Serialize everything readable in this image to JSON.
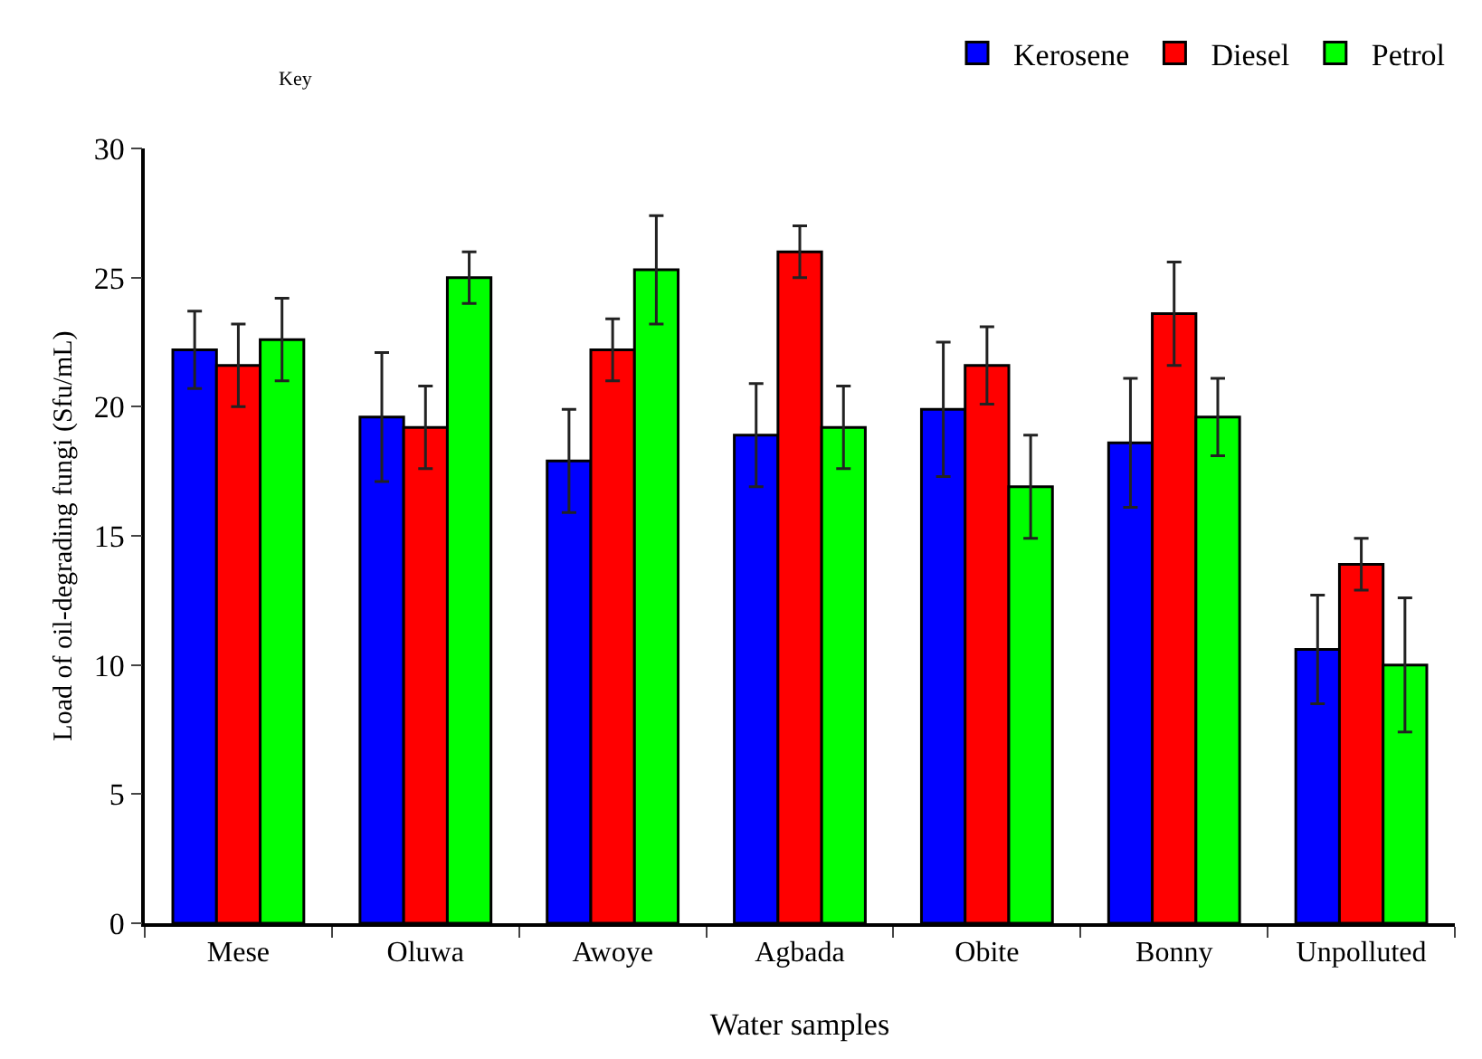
{
  "chart_data": {
    "type": "bar",
    "xlabel": "Water samples",
    "ylabel": "Load of oil-degrading fungi (Sfu/mL)",
    "annotations": [
      "Key"
    ],
    "categories": [
      "Mese",
      "Oluwa",
      "Awoye",
      "Agbada",
      "Obite",
      "Bonny",
      "Unpolluted"
    ],
    "series": [
      {
        "name": "Kerosene",
        "color": "#0000ff",
        "values": [
          22.2,
          19.6,
          17.9,
          18.9,
          19.9,
          18.6,
          10.6
        ],
        "errors": [
          1.5,
          2.5,
          2.0,
          2.0,
          2.6,
          2.5,
          2.1
        ]
      },
      {
        "name": "Diesel",
        "color": "#ff0000",
        "values": [
          21.6,
          19.2,
          22.2,
          26.0,
          21.6,
          23.6,
          13.9
        ],
        "errors": [
          1.6,
          1.6,
          1.2,
          1.0,
          1.5,
          2.0,
          1.0
        ]
      },
      {
        "name": "Petrol",
        "color": "#00ff00",
        "values": [
          22.6,
          25.0,
          25.3,
          19.2,
          16.9,
          19.6,
          10.0
        ],
        "errors": [
          1.6,
          1.0,
          2.1,
          1.6,
          2.0,
          1.5,
          2.6
        ]
      }
    ],
    "ylim": [
      0,
      30
    ],
    "yticks": [
      0,
      5,
      10,
      15,
      20,
      25,
      30
    ],
    "grid": false,
    "legend": "top right"
  }
}
